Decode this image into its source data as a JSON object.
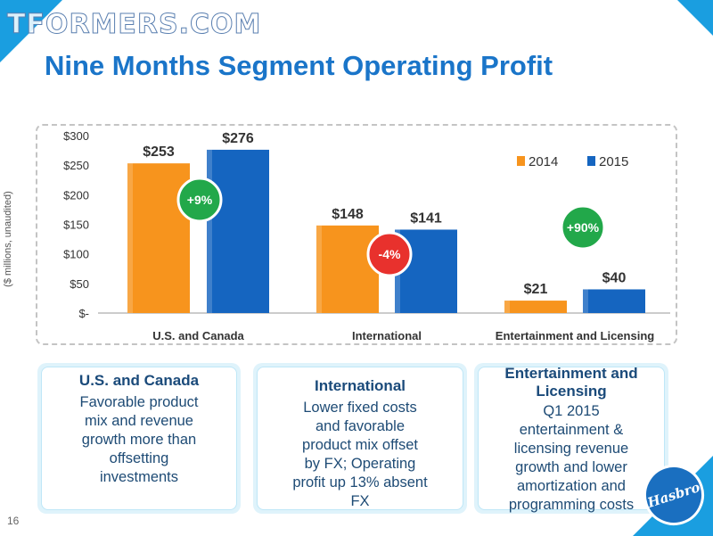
{
  "watermark": "TFORMERS.COM",
  "title": "Nine Months Segment Operating Profit",
  "page_number": "16",
  "logo_text": "Hasbro",
  "chart_data": {
    "type": "bar",
    "categories": [
      "U.S. and Canada",
      "International",
      "Entertainment and Licensing"
    ],
    "series": [
      {
        "name": "2014",
        "values": [
          253,
          148,
          21
        ],
        "color": "#f7941d"
      },
      {
        "name": "2015",
        "values": [
          276,
          141,
          40
        ],
        "color": "#1565c0"
      }
    ],
    "data_labels": [
      [
        "$253",
        "$276"
      ],
      [
        "$148",
        "$141"
      ],
      [
        "$21",
        "$40"
      ]
    ],
    "change_badges": [
      {
        "text": "+9%",
        "color": "#22a84a"
      },
      {
        "text": "-4%",
        "color": "#e8312d"
      },
      {
        "text": "+90%",
        "color": "#22a84a"
      }
    ],
    "ylabel": "($ millions, unaudited)",
    "ylim": [
      0,
      300
    ],
    "yticks": [
      {
        "value": 0,
        "label": "$-"
      },
      {
        "value": 50,
        "label": "$50"
      },
      {
        "value": 100,
        "label": "$100"
      },
      {
        "value": 150,
        "label": "$150"
      },
      {
        "value": 200,
        "label": "$200"
      },
      {
        "value": 250,
        "label": "$250"
      },
      {
        "value": 300,
        "label": "$300"
      }
    ],
    "legend_position": "top-right",
    "grid": false
  },
  "cards": [
    {
      "title": "U.S. and Canada",
      "lines": [
        "Favorable product",
        "mix and revenue",
        "growth more than",
        "offsetting",
        "investments"
      ]
    },
    {
      "title": "International",
      "lines": [
        "Lower fixed costs",
        "and favorable",
        "product mix offset",
        "by FX; Operating",
        "profit up 13% absent",
        "FX"
      ]
    },
    {
      "title_lines": [
        "Entertainment and",
        "Licensing"
      ],
      "lines": [
        "Q1 2015",
        "entertainment &",
        "licensing revenue",
        "growth and lower",
        "amortization and",
        "programming costs"
      ]
    }
  ]
}
